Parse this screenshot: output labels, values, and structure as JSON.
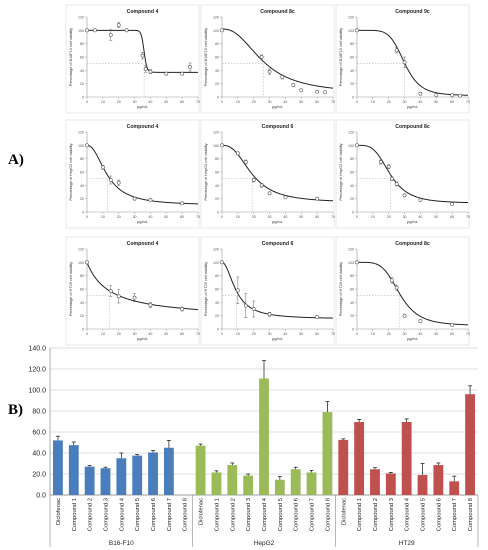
{
  "panels": {
    "a_label": "A)",
    "b_label": "B)"
  },
  "chart_data": [
    {
      "id": "r1c1",
      "type": "scatter",
      "title": "Compound 4",
      "xlabel": "µg/mL",
      "ylabel": "Percentage of B16F10 cell viability",
      "xlim": [
        0,
        70
      ],
      "ylim": [
        0,
        120
      ],
      "xticks": [
        0,
        10,
        20,
        30,
        40,
        50,
        60,
        70
      ],
      "yticks": [
        0,
        20,
        40,
        60,
        80,
        100,
        120
      ],
      "curve": {
        "top": 100,
        "bottom": 37,
        "ec50": 36,
        "hill": 40
      },
      "x": [
        0,
        5,
        15,
        20,
        25,
        35,
        37,
        40,
        50,
        60,
        65
      ],
      "y": [
        100,
        100,
        93,
        108,
        100,
        62,
        42,
        38,
        35,
        35,
        45
      ],
      "err": [
        0,
        0,
        8,
        4,
        0,
        5,
        5,
        3,
        2,
        2,
        6
      ],
      "refx": 36,
      "refy": 50
    },
    {
      "id": "r1c2",
      "type": "scatter",
      "title": "Compound 8c",
      "xlabel": "µg/mL",
      "ylabel": "Percentage of B16F10 cell viability",
      "xlim": [
        0,
        70
      ],
      "ylim": [
        0,
        120
      ],
      "xticks": [
        0,
        10,
        20,
        30,
        40,
        50,
        60,
        70
      ],
      "yticks": [
        0,
        20,
        40,
        60,
        80,
        100,
        120
      ],
      "curve": {
        "top": 102,
        "bottom": 5,
        "ec50": 26,
        "hill": 2.4
      },
      "x": [
        0,
        25,
        30,
        38,
        45,
        50,
        60,
        65
      ],
      "y": [
        100,
        60,
        38,
        30,
        18,
        10,
        8,
        7
      ],
      "err": [
        0,
        3,
        4,
        3,
        2,
        1,
        1,
        1
      ],
      "refx": 26,
      "refy": 50
    },
    {
      "id": "r1c3",
      "type": "scatter",
      "title": "Compound 9c",
      "xlabel": "µg/mL",
      "ylabel": "Percentage of B16F10 cell viability",
      "xlim": [
        0,
        70
      ],
      "ylim": [
        0,
        120
      ],
      "xticks": [
        0,
        10,
        20,
        30,
        40,
        50,
        60,
        70
      ],
      "yticks": [
        0,
        20,
        40,
        60,
        80,
        100,
        120
      ],
      "curve": {
        "top": 100,
        "bottom": 2,
        "ec50": 30,
        "hill": 6
      },
      "x": [
        0,
        25,
        30,
        40,
        50,
        60,
        65
      ],
      "y": [
        100,
        70,
        52,
        5,
        3,
        3,
        2
      ],
      "err": [
        0,
        4,
        8,
        2,
        1,
        1,
        1
      ],
      "refx": 30,
      "refy": 50
    },
    {
      "id": "r2c1",
      "type": "scatter",
      "title": "Compound 4",
      "xlabel": "µg/mL",
      "ylabel": "Percentage of HepG2 cell viability",
      "xlim": [
        0,
        70
      ],
      "ylim": [
        0,
        120
      ],
      "xticks": [
        0,
        10,
        20,
        30,
        40,
        50,
        60,
        70
      ],
      "yticks": [
        0,
        20,
        40,
        60,
        80,
        100,
        120
      ],
      "curve": {
        "top": 100,
        "bottom": 10,
        "ec50": 13,
        "hill": 2.2
      },
      "x": [
        0,
        10,
        15,
        20,
        30,
        40,
        60
      ],
      "y": [
        100,
        67,
        48,
        44,
        20,
        18,
        13
      ],
      "err": [
        0,
        3,
        6,
        4,
        2,
        1,
        1
      ],
      "refx": 13,
      "refy": 50
    },
    {
      "id": "r2c2",
      "type": "scatter",
      "title": "Compound 6",
      "xlabel": "µg/mL",
      "ylabel": "Percentage of HepG2 cell viability",
      "xlim": [
        0,
        70
      ],
      "ylim": [
        0,
        120
      ],
      "xticks": [
        0,
        10,
        20,
        30,
        40,
        50,
        60,
        70
      ],
      "yticks": [
        0,
        20,
        40,
        60,
        80,
        100,
        120
      ],
      "curve": {
        "top": 100,
        "bottom": 14,
        "ec50": 19,
        "hill": 2.6
      },
      "x": [
        0,
        10,
        15,
        20,
        25,
        30,
        40,
        60
      ],
      "y": [
        100,
        88,
        75,
        48,
        40,
        28,
        22,
        20
      ],
      "err": [
        0,
        2,
        3,
        3,
        3,
        2,
        1,
        1
      ],
      "refx": 19,
      "refy": 50
    },
    {
      "id": "r2c3",
      "type": "scatter",
      "title": "Compound 8c",
      "xlabel": "µg/mL",
      "ylabel": "Percentage of HepG2 cell viability",
      "xlim": [
        0,
        70
      ],
      "ylim": [
        0,
        120
      ],
      "xticks": [
        0,
        10,
        20,
        30,
        40,
        50,
        60,
        70
      ],
      "yticks": [
        0,
        20,
        40,
        60,
        80,
        100,
        120
      ],
      "curve": {
        "top": 100,
        "bottom": 13,
        "ec50": 21,
        "hill": 3.6
      },
      "x": [
        0,
        15,
        20,
        22,
        25,
        30,
        40,
        60
      ],
      "y": [
        100,
        75,
        68,
        50,
        42,
        25,
        18,
        12
      ],
      "err": [
        0,
        3,
        3,
        3,
        3,
        2,
        1,
        1
      ],
      "refx": 21,
      "refy": 50
    },
    {
      "id": "r3c1",
      "type": "scatter",
      "title": "Compound 4",
      "xlabel": "µg/mL",
      "ylabel": "Percentage of HT29 cell viability",
      "xlim": [
        0,
        70
      ],
      "ylim": [
        0,
        120
      ],
      "xticks": [
        0,
        10,
        20,
        30,
        40,
        50,
        60,
        70
      ],
      "yticks": [
        0,
        20,
        40,
        60,
        80,
        100,
        120
      ],
      "curve": {
        "top": 100,
        "bottom": 15,
        "ec50": 14,
        "hill": 1.0
      },
      "x": [
        0,
        15,
        20,
        30,
        40,
        60
      ],
      "y": [
        100,
        57,
        49,
        47,
        36,
        30
      ],
      "err": [
        0,
        8,
        10,
        6,
        4,
        3
      ],
      "refx": 14,
      "refy": 50
    },
    {
      "id": "r3c2",
      "type": "scatter",
      "title": "Compound 6",
      "xlabel": "µg/mL",
      "ylabel": "Percentage of HT29 cell viability",
      "xlim": [
        0,
        70
      ],
      "ylim": [
        0,
        120
      ],
      "xticks": [
        0,
        10,
        20,
        30,
        40,
        50,
        60,
        70
      ],
      "yticks": [
        0,
        20,
        40,
        60,
        80,
        100,
        120
      ],
      "curve": {
        "top": 100,
        "bottom": 15,
        "ec50": 9,
        "hill": 2.0
      },
      "x": [
        0,
        10,
        15,
        20,
        30,
        60
      ],
      "y": [
        100,
        58,
        35,
        30,
        22,
        18
      ],
      "err": [
        0,
        20,
        18,
        12,
        3,
        2
      ],
      "refx": 9,
      "refy": 50
    },
    {
      "id": "r3c3",
      "type": "scatter",
      "title": "Compound 8c",
      "xlabel": "µg/mL",
      "ylabel": "Percentage of HT29 cell viability",
      "xlim": [
        0,
        70
      ],
      "ylim": [
        0,
        120
      ],
      "xticks": [
        0,
        10,
        20,
        30,
        40,
        50,
        60,
        70
      ],
      "yticks": [
        0,
        20,
        40,
        60,
        80,
        100,
        120
      ],
      "curve": {
        "top": 100,
        "bottom": 5,
        "ec50": 27,
        "hill": 4.5
      },
      "x": [
        0,
        22,
        25,
        30,
        40,
        60
      ],
      "y": [
        100,
        73,
        62,
        20,
        12,
        6
      ],
      "err": [
        0,
        4,
        4,
        2,
        2,
        1
      ],
      "refx": 27,
      "refy": 50
    },
    {
      "id": "bar",
      "type": "bar",
      "categories": [
        "Diclofenac",
        "Compound 1",
        "Compound 2",
        "Compound 3",
        "Compound 4",
        "Compound 5",
        "Compound 6",
        "Compound 7",
        "Compound 8"
      ],
      "groups": [
        "B16-F10",
        "HepG2",
        "HT29"
      ],
      "series": [
        {
          "color": "#4a7ebb",
          "values": [
            52,
            47.5,
            27,
            25.5,
            35,
            37.5,
            40.5,
            45,
            0
          ],
          "errors": [
            4,
            3,
            1,
            1,
            5,
            1,
            2,
            7,
            0
          ]
        },
        {
          "color": "#9bbb59",
          "values": [
            47,
            21.5,
            28.5,
            18.5,
            111,
            14.5,
            24.5,
            21.5,
            79
          ],
          "errors": [
            1.5,
            1.5,
            2,
            1.5,
            17,
            3,
            2,
            2,
            10
          ]
        },
        {
          "color": "#c0504d",
          "values": [
            52.5,
            69.5,
            24.5,
            20.5,
            69.5,
            19,
            28.5,
            13,
            96
          ],
          "errors": [
            1,
            2.5,
            1.5,
            1,
            3,
            11,
            2,
            5,
            8
          ]
        }
      ],
      "ylim": [
        0,
        140
      ],
      "yticks": [
        "0.0",
        "20.0",
        "40.0",
        "60.0",
        "80.0",
        "100.0",
        "120.0",
        "140.0"
      ],
      "grid": true
    }
  ]
}
